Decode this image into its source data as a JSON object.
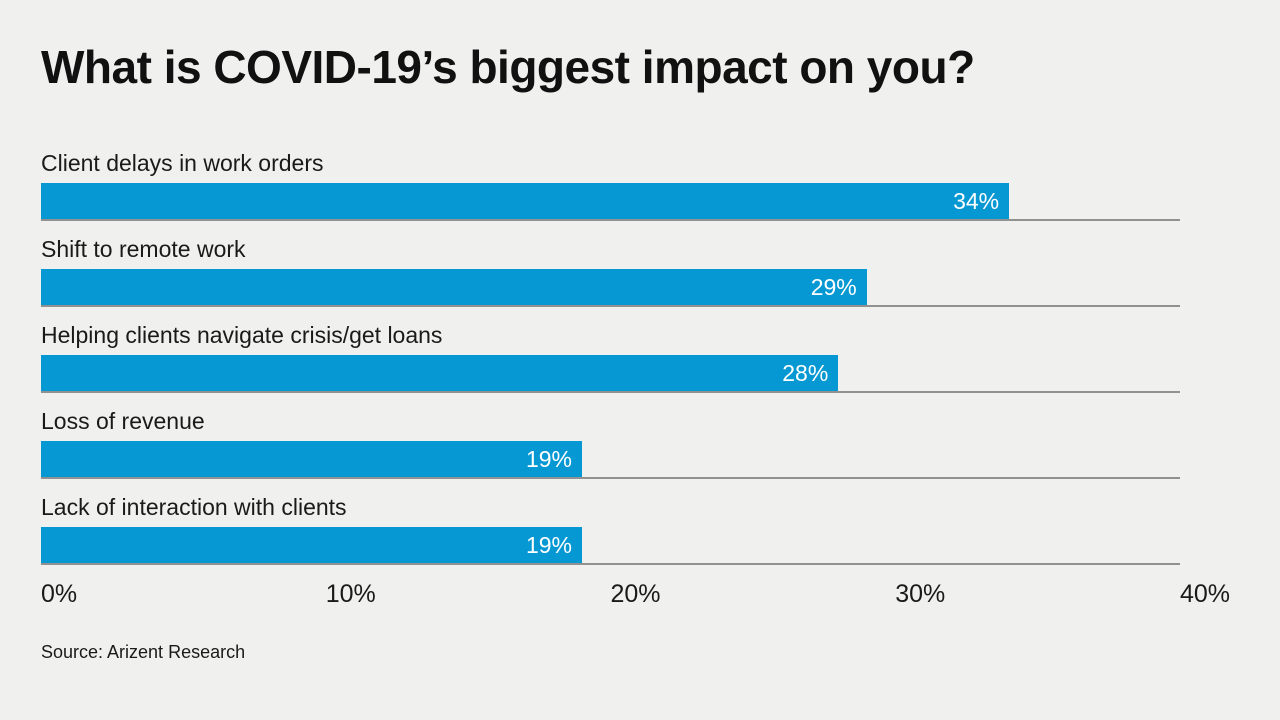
{
  "chart_data": {
    "type": "bar",
    "orientation": "horizontal",
    "title": "What is COVID-19’s biggest impact on you?",
    "categories": [
      "Client delays in work orders",
      "Shift to remote work",
      "Helping clients navigate crisis/get loans",
      "Loss of revenue",
      "Lack of interaction with clients"
    ],
    "values": [
      34,
      29,
      28,
      19,
      19
    ],
    "value_labels": [
      "34%",
      "29%",
      "28%",
      "19%",
      "19%"
    ],
    "xlim": [
      0,
      40
    ],
    "x_ticks": [
      "0%",
      "10%",
      "20%",
      "30%",
      "40%"
    ],
    "source": "Source: Arizent Research",
    "bar_color": "#0698d3",
    "background_color": "#f0f1ef",
    "grid": "per-bar-baseline",
    "legend": "none"
  }
}
